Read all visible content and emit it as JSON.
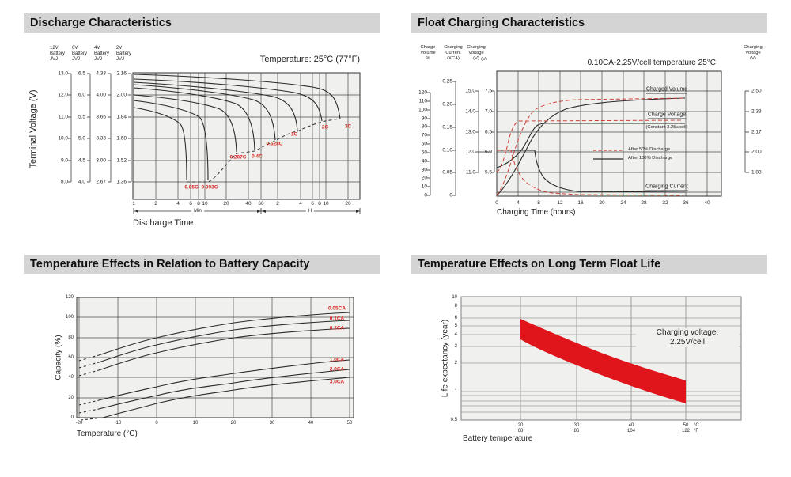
{
  "colors": {
    "header_bg": "#d4d4d4",
    "plot_bg": "#f0f0ef",
    "grid": "#4a4a4a",
    "curve": "#2a2a2a",
    "accent_red": "#d9261f",
    "band_red": "#e0151c"
  },
  "chart_data": [
    {
      "id": "discharge",
      "type": "line",
      "title": "Discharge Characteristics",
      "annotation": "Temperature: 25°C (77°F)",
      "xlabel": "Discharge Time",
      "x_scale": "log",
      "x_unit_ranges": [
        "Min",
        "H"
      ],
      "xticks": [
        "1",
        "2",
        "4",
        "6",
        "8",
        "10",
        "20",
        "40",
        "60",
        "2",
        "4",
        "6",
        "8",
        "10",
        "20"
      ],
      "ylabel": "Terminal Voltage (V)",
      "y_axes": [
        {
          "header": "12V\nBattery\nJVJ",
          "ticks": [
            "13.0",
            "12.0",
            "11.0",
            "10.0",
            "9.0",
            "8.0"
          ]
        },
        {
          "header": "6V\nBattery\nJVJ",
          "ticks": [
            "6.5",
            "6.0",
            "5.5",
            "5.0",
            "4.5",
            "4.0"
          ]
        },
        {
          "header": "4V\nBattery\nJVJ",
          "ticks": [
            "4.33",
            "4.00",
            "3.66",
            "3.33",
            "3.00",
            "2.67"
          ]
        },
        {
          "header": "2V\nBattery\nJVJ",
          "ticks": [
            "2.16",
            "2.00",
            "1.84",
            "1.68",
            "1.52",
            "1.36"
          ]
        }
      ],
      "series": [
        {
          "name": "3C",
          "x_minutes": [
            1,
            2,
            4,
            6,
            6.8
          ],
          "v_per_cell": [
            1.91,
            1.86,
            1.76,
            1.62,
            1.37
          ]
        },
        {
          "name": "2C",
          "x_minutes": [
            1,
            2,
            4,
            8,
            10.5
          ],
          "v_per_cell": [
            1.96,
            1.92,
            1.84,
            1.68,
            1.37
          ]
        },
        {
          "name": "1C",
          "x_minutes": [
            1,
            4,
            10,
            20,
            30
          ],
          "v_per_cell": [
            2.0,
            1.95,
            1.86,
            1.72,
            1.57
          ]
        },
        {
          "name": "0.628C",
          "x_minutes": [
            1,
            10,
            30,
            45,
            55
          ],
          "v_per_cell": [
            2.03,
            1.95,
            1.8,
            1.65,
            1.58
          ]
        },
        {
          "name": "0.4C",
          "x_minutes": [
            1,
            10,
            40,
            80,
            95
          ],
          "v_per_cell": [
            2.06,
            2.0,
            1.88,
            1.7,
            1.65
          ]
        },
        {
          "name": "0.207C",
          "x_minutes": [
            1,
            20,
            60,
            180,
            220
          ],
          "v_per_cell": [
            2.08,
            2.03,
            1.95,
            1.75,
            1.72
          ]
        },
        {
          "name": "0.093C",
          "x_minutes": [
            1,
            60,
            240,
            400,
            480
          ],
          "v_per_cell": [
            2.11,
            2.05,
            1.92,
            1.78,
            1.76
          ]
        },
        {
          "name": "0.05C",
          "x_minutes": [
            1,
            60,
            400,
            800,
            900
          ],
          "v_per_cell": [
            2.14,
            2.1,
            1.92,
            1.79,
            1.77
          ]
        }
      ],
      "cutoff_curve": {
        "style": "dashed",
        "x_minutes": [
          6.8,
          10.5,
          30,
          55,
          95,
          220,
          480,
          900
        ],
        "v_per_cell": [
          1.37,
          1.37,
          1.57,
          1.58,
          1.65,
          1.72,
          1.76,
          1.77
        ]
      }
    },
    {
      "id": "float_charging",
      "type": "line",
      "title": "Float Charging Characteristics",
      "annotation": "0.10CA-2.25V/cell  temperature 25°C",
      "xlabel": "Charging Time (hours)",
      "xticks": [
        "0",
        "4",
        "8",
        "12",
        "16",
        "20",
        "24",
        "28",
        "32",
        "36",
        "40"
      ],
      "y_axes": [
        {
          "header": "Charge\nVolume\n%",
          "ticks": [
            "120",
            "110",
            "100",
            "90",
            "80",
            "70",
            "60",
            "50",
            "40",
            "30",
            "20",
            "10",
            "0"
          ]
        },
        {
          "header": "Charging\nCurrent\n(XCA)",
          "ticks": [
            "0.25",
            "0.20",
            "0.15",
            "0.10",
            "0.05",
            "0"
          ]
        },
        {
          "header": "Charging\nVoltage\n(V)",
          "ticks": [
            "15.0",
            "14.0",
            "13.0",
            "12.0",
            "11.0"
          ]
        },
        {
          "header": "(V)",
          "ticks": [
            "7.5",
            "7.0",
            "6.5",
            "6.0",
            "5.5"
          ]
        }
      ],
      "right_axis": {
        "header": "Charging\nVoltage\n(V)",
        "ticks": [
          "2.50",
          "2.33",
          "2.17",
          "2.00",
          "1.83"
        ]
      },
      "curve_labels": {
        "charged_volume": "Charged Volume",
        "charge_voltage": "Charge Voltage",
        "charge_voltage_sub": "(Constant 2.25v/cell)",
        "charging_current": "Charging Current"
      },
      "legend": [
        {
          "style": "red-dashed",
          "label": "After  50% Discharge"
        },
        {
          "style": "black-solid",
          "label": "After 100% Discharge"
        }
      ],
      "series": [
        {
          "name": "Charge Volume after 100% discharge",
          "x_hours": [
            0,
            4,
            8,
            12,
            24,
            36
          ],
          "percent": [
            0,
            45,
            85,
            98,
            104,
            106
          ]
        },
        {
          "name": "Charge Volume after 50% discharge",
          "x_hours": [
            0,
            2,
            4,
            8,
            12,
            36
          ],
          "percent": [
            0,
            45,
            88,
            103,
            106,
            107
          ]
        },
        {
          "name": "Charge Voltage after 100% discharge",
          "x_hours": [
            0,
            4,
            6,
            8,
            12,
            36
          ],
          "v_per_cell": [
            1.95,
            2.05,
            2.15,
            2.24,
            2.25,
            2.25
          ]
        },
        {
          "name": "Charge Voltage after 50% discharge",
          "x_hours": [
            0,
            2,
            4,
            8,
            36
          ],
          "v_per_cell": [
            1.98,
            2.1,
            2.25,
            2.25,
            2.25
          ]
        },
        {
          "name": "Charging Current after 100% discharge",
          "x_hours": [
            0,
            7,
            9,
            12,
            20,
            36
          ],
          "xca": [
            0.1,
            0.1,
            0.06,
            0.03,
            0.012,
            0.01
          ]
        },
        {
          "name": "Charging Current after 50% discharge",
          "x_hours": [
            0,
            3,
            5,
            8,
            12,
            36
          ],
          "xca": [
            0.1,
            0.1,
            0.06,
            0.025,
            0.012,
            0.008
          ]
        }
      ]
    },
    {
      "id": "capacity_vs_temperature",
      "type": "line",
      "title": "Temperature Effects in Relation to Battery Capacity",
      "xlabel": "Temperature (°C)",
      "ylabel": "Capacity (%)",
      "xticks": [
        "-20",
        "-10",
        "0",
        "10",
        "20",
        "30",
        "40",
        "50"
      ],
      "yticks": [
        "120",
        "100",
        "80",
        "60",
        "40",
        "20",
        "0"
      ],
      "x_celsius": [
        -20,
        -10,
        0,
        10,
        20,
        30,
        40,
        50
      ],
      "series": [
        {
          "name": "0.05CA",
          "values": [
            57,
            69,
            80,
            87,
            95,
            100,
            103,
            105
          ]
        },
        {
          "name": "0.1CA",
          "values": [
            50,
            62,
            73,
            81,
            88,
            93,
            95,
            97
          ]
        },
        {
          "name": "0.2CA",
          "values": [
            42,
            54,
            65,
            73,
            80,
            85,
            87,
            89
          ]
        },
        {
          "name": "1.0CA",
          "values": [
            13,
            22,
            31,
            38,
            44,
            50,
            54,
            58
          ]
        },
        {
          "name": "2.0CA",
          "values": [
            5,
            13,
            22,
            29,
            35,
            41,
            45,
            48
          ]
        },
        {
          "name": "3.0CA",
          "values": [
            null,
            5,
            14,
            21,
            28,
            33,
            37,
            40
          ]
        }
      ],
      "note": "curves dashed below about -15°C"
    },
    {
      "id": "float_life_vs_temperature",
      "type": "area",
      "title": "Temperature Effects on Long Term Float Life",
      "xlabel": "Battery temperature",
      "ylabel": "Life expectancy (year)",
      "annotation": "Charging voltage:\n2.25V/cell",
      "y_scale": "log",
      "yticks": [
        "10",
        "8",
        "6",
        "5",
        "4",
        "3",
        "2",
        "1",
        "0.5"
      ],
      "xticks": [
        "20\n68",
        "30\n86",
        "40\n104",
        "50\n122"
      ],
      "x_unit_labels": "°C\n°F",
      "band": {
        "x_celsius": [
          20,
          30,
          40,
          50
        ],
        "upper_years": [
          5.8,
          3.4,
          2.1,
          1.3
        ],
        "lower_years": [
          3.5,
          2.1,
          1.25,
          0.74
        ]
      }
    }
  ]
}
